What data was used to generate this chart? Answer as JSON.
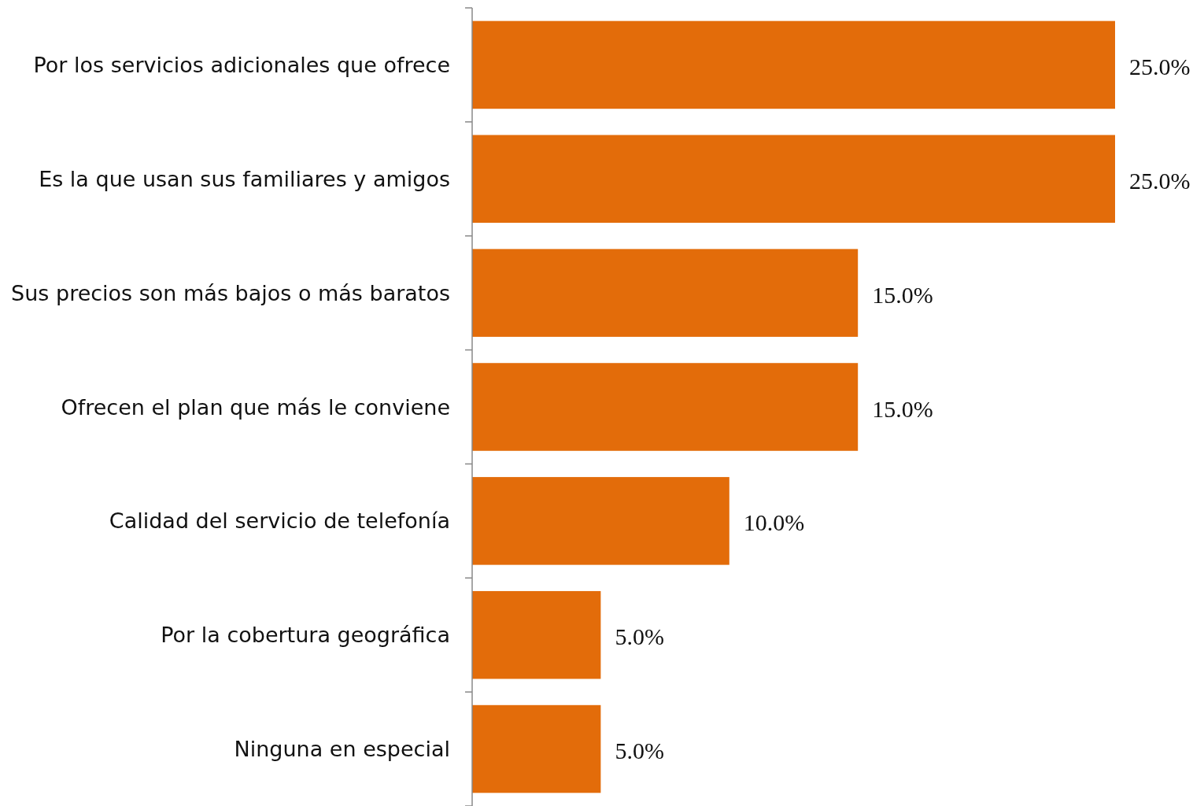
{
  "chart_data": {
    "type": "bar",
    "orientation": "horizontal",
    "categories": [
      "Por los servicios adicionales que ofrece",
      "Es la que usan sus familiares y amigos",
      "Sus precios son más bajos o más baratos",
      "Ofrecen el plan que más le conviene",
      "Calidad del servicio de telefonía",
      "Por la cobertura geográfica",
      "Ninguna en especial"
    ],
    "values": [
      25,
      25,
      15,
      15,
      10,
      5,
      5
    ],
    "value_labels": [
      "25.0%",
      "25.0%",
      "15.0%",
      "15.0%",
      "10.0%",
      "5.0%",
      "5.0%"
    ],
    "color": "#e36c0a",
    "xlim": [
      0,
      25
    ]
  }
}
